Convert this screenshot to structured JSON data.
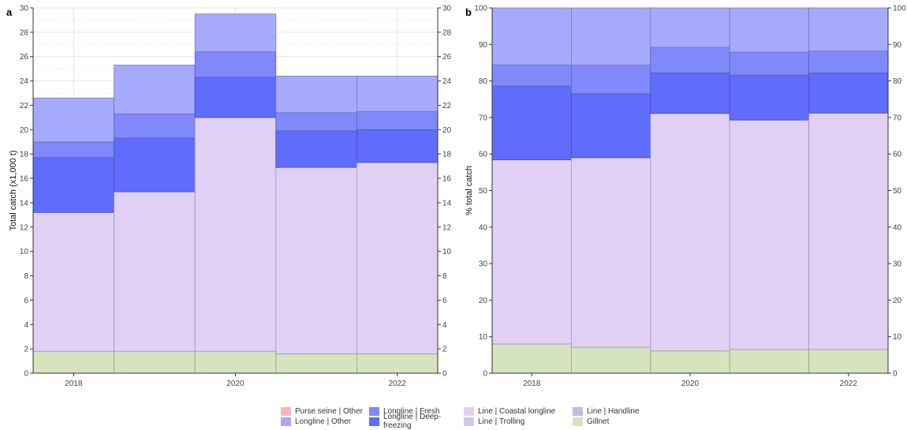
{
  "figure": {
    "panel_a_letter": "a",
    "panel_b_letter": "b"
  },
  "chart_data": [
    {
      "type": "bar",
      "stacked": true,
      "panel": "a",
      "ylabel": "Total catch (x1,000 t)",
      "ylim": [
        0,
        30
      ],
      "yticks": [
        0,
        2,
        4,
        6,
        8,
        10,
        12,
        14,
        16,
        18,
        20,
        22,
        24,
        26,
        28,
        30
      ],
      "x": [
        2018,
        2019,
        2020,
        2021,
        2022
      ],
      "xticks": [
        "2018",
        "2020",
        "2022"
      ],
      "grid": true,
      "series": [
        {
          "name": "Gillnet",
          "color": "#d5e3be",
          "values": [
            1.8,
            1.8,
            1.8,
            1.6,
            1.6
          ]
        },
        {
          "name": "Line | Coastal longline",
          "color": "#e0d1f4",
          "values": [
            11.4,
            13.1,
            19.2,
            15.3,
            15.7
          ]
        },
        {
          "name": "Longline | Deep-freezing",
          "color": "#606cfb",
          "values": [
            4.5,
            4.4,
            3.3,
            3.0,
            2.7
          ]
        },
        {
          "name": "Longline | Fresh",
          "color": "#8088fa",
          "values": [
            1.3,
            2.0,
            2.1,
            1.5,
            1.5
          ]
        },
        {
          "name": "Longline | Other",
          "color": "#a5aafd",
          "values": [
            3.6,
            4.0,
            3.1,
            3.0,
            2.9
          ]
        }
      ]
    },
    {
      "type": "bar",
      "stacked": true,
      "panel": "b",
      "ylabel": "% total catch",
      "ylim": [
        0,
        100
      ],
      "yticks": [
        0,
        10,
        20,
        30,
        40,
        50,
        60,
        70,
        80,
        90,
        100
      ],
      "x": [
        2018,
        2019,
        2020,
        2021,
        2022
      ],
      "xticks": [
        "2018",
        "2020",
        "2022"
      ],
      "grid": false,
      "series": [
        {
          "name": "Gillnet",
          "color": "#d5e3be",
          "values": [
            8.0,
            7.1,
            6.1,
            6.5,
            6.5
          ]
        },
        {
          "name": "Line | Coastal longline",
          "color": "#e0d1f4",
          "values": [
            50.4,
            51.9,
            65.0,
            62.8,
            64.7
          ]
        },
        {
          "name": "Longline | Deep-freezing",
          "color": "#606cfb",
          "values": [
            20.2,
            17.5,
            11.1,
            12.3,
            11.0
          ]
        },
        {
          "name": "Longline | Fresh",
          "color": "#8088fa",
          "values": [
            5.8,
            7.8,
            7.0,
            6.3,
            6.0
          ]
        },
        {
          "name": "Longline | Other",
          "color": "#a5aafd",
          "values": [
            15.6,
            15.7,
            10.8,
            12.1,
            11.8
          ]
        }
      ]
    }
  ],
  "legend": {
    "items": [
      {
        "label": "Purse seine | Other",
        "color": "#f9b4bf"
      },
      {
        "label": "Longline | Fresh",
        "color": "#8088fa"
      },
      {
        "label": "Line | Coastal longline",
        "color": "#e0d1f4"
      },
      {
        "label": "Line | Handline",
        "color": "#c7b7e2"
      },
      {
        "label": "Longline | Other",
        "color": "#a5aafd"
      },
      {
        "label": "Longline | Deep-freezing",
        "color": "#606cfb"
      },
      {
        "label": "Line | Trolling",
        "color": "#d4c7ec"
      },
      {
        "label": "Gillnet",
        "color": "#d5e3be"
      }
    ]
  }
}
